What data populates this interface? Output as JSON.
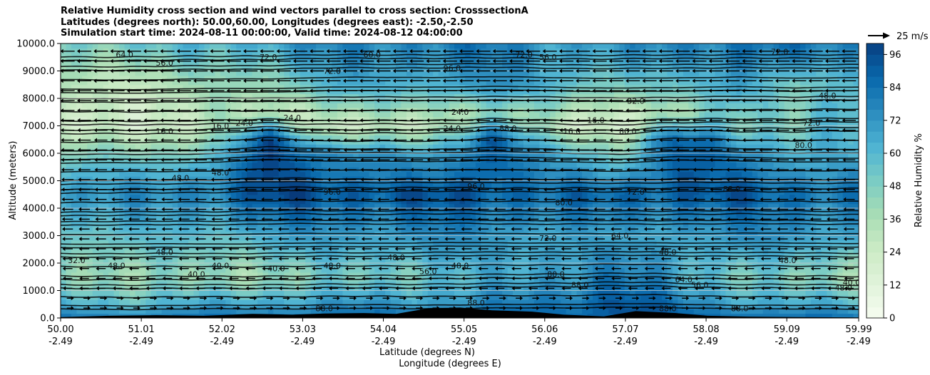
{
  "title": {
    "line1": "Relative Humidity cross section and wind vectors parallel to cross section: CrosssectionA",
    "line2": "Latitudes (degrees north): 50.00,60.00, Longitudes (degrees east): -2.50,-2.50",
    "line3": "Simulation start time: 2024-08-11 00:00:00, Valid time: 2024-08-12 04:00:00"
  },
  "chart_data": {
    "type": "heatmap",
    "ylabel": "Altitude (meters)",
    "xlabel_line1": "Latitude (degrees N)",
    "xlabel_line2": "Longitude (degrees E)",
    "ylim": [
      0,
      10000
    ],
    "xlim": [
      50.0,
      59.99
    ],
    "y_ticks": [
      "0.0",
      "1000.0",
      "2000.0",
      "3000.0",
      "4000.0",
      "5000.0",
      "6000.0",
      "7000.0",
      "8000.0",
      "9000.0",
      "10000.0"
    ],
    "y_tick_values": [
      0,
      1000,
      2000,
      3000,
      4000,
      5000,
      6000,
      7000,
      8000,
      9000,
      10000
    ],
    "x_ticks": [
      {
        "lat": "50.00",
        "lon": "-2.49",
        "value": 50.0
      },
      {
        "lat": "51.01",
        "lon": "-2.49",
        "value": 51.01
      },
      {
        "lat": "52.02",
        "lon": "-2.49",
        "value": 52.02
      },
      {
        "lat": "53.03",
        "lon": "-2.49",
        "value": 53.03
      },
      {
        "lat": "54.04",
        "lon": "-2.49",
        "value": 54.04
      },
      {
        "lat": "55.05",
        "lon": "-2.49",
        "value": 55.05
      },
      {
        "lat": "56.06",
        "lon": "-2.49",
        "value": 56.06
      },
      {
        "lat": "57.07",
        "lon": "-2.49",
        "value": 57.07
      },
      {
        "lat": "58.08",
        "lon": "-2.49",
        "value": 58.08
      },
      {
        "lat": "59.09",
        "lon": "-2.49",
        "value": 59.09
      },
      {
        "lat": "59.99",
        "lon": "-2.49",
        "value": 59.99
      }
    ],
    "colorbar": {
      "label": "Relative Humidity %",
      "ticks": [
        "0",
        "12",
        "24",
        "36",
        "48",
        "60",
        "72",
        "84",
        "96"
      ],
      "tick_values": [
        0,
        12,
        24,
        36,
        48,
        60,
        72,
        84,
        96
      ],
      "range": [
        0,
        100
      ],
      "colors": [
        "#f7fcf0",
        "#e0f3db",
        "#ccebc5",
        "#a8ddb5",
        "#7bccc4",
        "#4eb3d3",
        "#2b8cbe",
        "#0868ac",
        "#084081"
      ]
    },
    "wind_reference": "25 m/s",
    "contour_levels": [
      "16.0",
      "24.0",
      "32.0",
      "40.0",
      "48.0",
      "56.0",
      "64.0",
      "72.0",
      "80.0",
      "88.0",
      "96.0"
    ],
    "rh_profile": {
      "columns": [
        {
          "x": 50.0,
          "rh": [
            [
              0,
              80
            ],
            [
              500,
              62
            ],
            [
              1500,
              45
            ],
            [
              3000,
              58
            ],
            [
              4500,
              70
            ],
            [
              5500,
              55
            ],
            [
              7000,
              18
            ],
            [
              8500,
              30
            ],
            [
              10000,
              50
            ]
          ]
        },
        {
          "x": 51.0,
          "rh": [
            [
              0,
              82
            ],
            [
              500,
              60
            ],
            [
              1500,
              40
            ],
            [
              3000,
              55
            ],
            [
              4500,
              72
            ],
            [
              5500,
              58
            ],
            [
              7000,
              22
            ],
            [
              8500,
              30
            ],
            [
              10000,
              55
            ]
          ]
        },
        {
          "x": 52.0,
          "rh": [
            [
              0,
              84
            ],
            [
              500,
              65
            ],
            [
              1500,
              38
            ],
            [
              3000,
              60
            ],
            [
              4500,
              82
            ],
            [
              5500,
              70
            ],
            [
              7000,
              30
            ],
            [
              8500,
              38
            ],
            [
              10000,
              60
            ]
          ]
        },
        {
          "x": 52.6,
          "rh": [
            [
              0,
              86
            ],
            [
              500,
              70
            ],
            [
              1500,
              42
            ],
            [
              3000,
              66
            ],
            [
              4500,
              96
            ],
            [
              6500,
              96
            ],
            [
              7500,
              30
            ],
            [
              8500,
              45
            ],
            [
              10000,
              70
            ]
          ]
        },
        {
          "x": 53.3,
          "rh": [
            [
              0,
              88
            ],
            [
              500,
              70
            ],
            [
              1500,
              45
            ],
            [
              3000,
              68
            ],
            [
              4500,
              94
            ],
            [
              6000,
              80
            ],
            [
              7000,
              24
            ],
            [
              8500,
              60
            ],
            [
              10000,
              75
            ]
          ]
        },
        {
          "x": 54.0,
          "rh": [
            [
              0,
              88
            ],
            [
              500,
              72
            ],
            [
              1500,
              50
            ],
            [
              3000,
              72
            ],
            [
              4500,
              92
            ],
            [
              6000,
              70
            ],
            [
              7000,
              22
            ],
            [
              8500,
              62
            ],
            [
              10000,
              78
            ]
          ]
        },
        {
          "x": 54.6,
          "rh": [
            [
              0,
              90
            ],
            [
              500,
              72
            ],
            [
              1500,
              55
            ],
            [
              3000,
              74
            ],
            [
              4500,
              92
            ],
            [
              6000,
              60
            ],
            [
              7000,
              26
            ],
            [
              8500,
              66
            ],
            [
              10000,
              80
            ]
          ]
        },
        {
          "x": 55.4,
          "rh": [
            [
              0,
              90
            ],
            [
              500,
              75
            ],
            [
              1500,
              60
            ],
            [
              3000,
              70
            ],
            [
              4500,
              92
            ],
            [
              6500,
              94
            ],
            [
              7500,
              40
            ],
            [
              8500,
              70
            ],
            [
              10000,
              80
            ]
          ]
        },
        {
          "x": 56.2,
          "rh": [
            [
              0,
              90
            ],
            [
              500,
              82
            ],
            [
              1500,
              72
            ],
            [
              3000,
              70
            ],
            [
              4500,
              84
            ],
            [
              6000,
              60
            ],
            [
              7000,
              24
            ],
            [
              8500,
              62
            ],
            [
              10000,
              72
            ]
          ]
        },
        {
          "x": 57.0,
          "rh": [
            [
              0,
              95
            ],
            [
              500,
              95
            ],
            [
              1500,
              80
            ],
            [
              3000,
              62
            ],
            [
              4500,
              86
            ],
            [
              6000,
              50
            ],
            [
              7000,
              20
            ],
            [
              8500,
              50
            ],
            [
              10000,
              70
            ]
          ]
        },
        {
          "x": 57.7,
          "rh": [
            [
              0,
              92
            ],
            [
              500,
              80
            ],
            [
              1500,
              66
            ],
            [
              3000,
              70
            ],
            [
              4500,
              92
            ],
            [
              6500,
              90
            ],
            [
              7500,
              30
            ],
            [
              8500,
              50
            ],
            [
              10000,
              80
            ]
          ]
        },
        {
          "x": 58.5,
          "rh": [
            [
              0,
              88
            ],
            [
              500,
              70
            ],
            [
              1500,
              52
            ],
            [
              3000,
              72
            ],
            [
              4500,
              90
            ],
            [
              6000,
              76
            ],
            [
              7000,
              52
            ],
            [
              8500,
              74
            ],
            [
              10000,
              84
            ]
          ]
        },
        {
          "x": 59.2,
          "rh": [
            [
              0,
              85
            ],
            [
              500,
              62
            ],
            [
              1500,
              42
            ],
            [
              3000,
              70
            ],
            [
              4500,
              86
            ],
            [
              6000,
              66
            ],
            [
              7000,
              50
            ],
            [
              8500,
              44
            ],
            [
              10000,
              82
            ]
          ]
        },
        {
          "x": 59.99,
          "rh": [
            [
              0,
              84
            ],
            [
              500,
              62
            ],
            [
              1500,
              40
            ],
            [
              3000,
              70
            ],
            [
              4500,
              82
            ],
            [
              6000,
              60
            ],
            [
              7000,
              60
            ],
            [
              8500,
              60
            ],
            [
              10000,
              80
            ]
          ]
        }
      ]
    },
    "contour_labels": [
      {
        "text": "64.0",
        "x": 50.8,
        "y": 9500
      },
      {
        "text": "56.0",
        "x": 51.3,
        "y": 9200
      },
      {
        "text": "72.0",
        "x": 52.6,
        "y": 9400
      },
      {
        "text": "72.0",
        "x": 53.4,
        "y": 8900
      },
      {
        "text": "16.0",
        "x": 51.3,
        "y": 6700
      },
      {
        "text": "16.0",
        "x": 52.0,
        "y": 6900
      },
      {
        "text": "24.0",
        "x": 52.3,
        "y": 7000
      },
      {
        "text": "24.0",
        "x": 52.9,
        "y": 7200
      },
      {
        "text": "48.0",
        "x": 51.5,
        "y": 5000
      },
      {
        "text": "48.0",
        "x": 52.0,
        "y": 5200
      },
      {
        "text": "24.0",
        "x": 55.0,
        "y": 7400
      },
      {
        "text": "24.0",
        "x": 54.9,
        "y": 6800
      },
      {
        "text": "16.0",
        "x": 56.4,
        "y": 6700
      },
      {
        "text": "16.0",
        "x": 56.7,
        "y": 7100
      },
      {
        "text": "32.0",
        "x": 57.2,
        "y": 7800
      },
      {
        "text": "80.0",
        "x": 57.1,
        "y": 6700
      },
      {
        "text": "72.0",
        "x": 59.4,
        "y": 7000
      },
      {
        "text": "80.0",
        "x": 59.3,
        "y": 6200
      },
      {
        "text": "56.0",
        "x": 56.1,
        "y": 9400
      },
      {
        "text": "72.0",
        "x": 55.8,
        "y": 9500
      },
      {
        "text": "60.0",
        "x": 53.9,
        "y": 9500
      },
      {
        "text": "96.0",
        "x": 54.9,
        "y": 9000
      },
      {
        "text": "48.0",
        "x": 59.6,
        "y": 8000
      },
      {
        "text": "72.0",
        "x": 59.0,
        "y": 9600
      },
      {
        "text": "32.0",
        "x": 50.2,
        "y": 2000
      },
      {
        "text": "48.0",
        "x": 50.7,
        "y": 1800
      },
      {
        "text": "48.0",
        "x": 51.3,
        "y": 2300
      },
      {
        "text": "40.0",
        "x": 51.7,
        "y": 1500
      },
      {
        "text": "40.0",
        "x": 52.0,
        "y": 1800
      },
      {
        "text": "40.0",
        "x": 52.7,
        "y": 1700
      },
      {
        "text": "48.0",
        "x": 53.4,
        "y": 1800
      },
      {
        "text": "48.0",
        "x": 54.2,
        "y": 2100
      },
      {
        "text": "48.0",
        "x": 55.0,
        "y": 1800
      },
      {
        "text": "56.0",
        "x": 54.6,
        "y": 1600
      },
      {
        "text": "72.0",
        "x": 56.1,
        "y": 2800
      },
      {
        "text": "80.0",
        "x": 56.2,
        "y": 1500
      },
      {
        "text": "88.0",
        "x": 56.5,
        "y": 1100
      },
      {
        "text": "64.0",
        "x": 57.0,
        "y": 2900
      },
      {
        "text": "48.0",
        "x": 57.6,
        "y": 2300
      },
      {
        "text": "64.0",
        "x": 57.8,
        "y": 1300
      },
      {
        "text": "56.0",
        "x": 58.0,
        "y": 1100
      },
      {
        "text": "48.0",
        "x": 59.1,
        "y": 2000
      },
      {
        "text": "48.0",
        "x": 59.8,
        "y": 1000
      },
      {
        "text": "40.0",
        "x": 59.9,
        "y": 1200
      },
      {
        "text": "88.0",
        "x": 53.3,
        "y": 250
      },
      {
        "text": "88.0",
        "x": 55.2,
        "y": 450
      },
      {
        "text": "88.0",
        "x": 57.6,
        "y": 250
      },
      {
        "text": "88.0",
        "x": 58.5,
        "y": 250
      },
      {
        "text": "80.0",
        "x": 56.3,
        "y": 4100
      },
      {
        "text": "88.0",
        "x": 55.6,
        "y": 6800
      },
      {
        "text": "72.0",
        "x": 57.2,
        "y": 4500
      },
      {
        "text": "96.0",
        "x": 53.4,
        "y": 4500
      },
      {
        "text": "96.0",
        "x": 55.2,
        "y": 4700
      },
      {
        "text": "88.0",
        "x": 58.4,
        "y": 4600
      }
    ],
    "terrain_m": [
      [
        50.0,
        30
      ],
      [
        50.6,
        80
      ],
      [
        51.2,
        100
      ],
      [
        51.8,
        80
      ],
      [
        52.4,
        150
      ],
      [
        52.9,
        120
      ],
      [
        53.3,
        160
      ],
      [
        53.8,
        180
      ],
      [
        54.2,
        150
      ],
      [
        54.6,
        350
      ],
      [
        55.0,
        380
      ],
      [
        55.4,
        280
      ],
      [
        55.9,
        230
      ],
      [
        56.3,
        120
      ],
      [
        56.8,
        60
      ],
      [
        57.2,
        250
      ],
      [
        57.7,
        180
      ],
      [
        58.1,
        80
      ],
      [
        58.6,
        50
      ],
      [
        59.2,
        30
      ],
      [
        59.99,
        20
      ]
    ],
    "wind_arrows": {
      "note": "arrows parallel to cross section; mostly pointing south (left) aloft, north (right) near surface"
    }
  }
}
